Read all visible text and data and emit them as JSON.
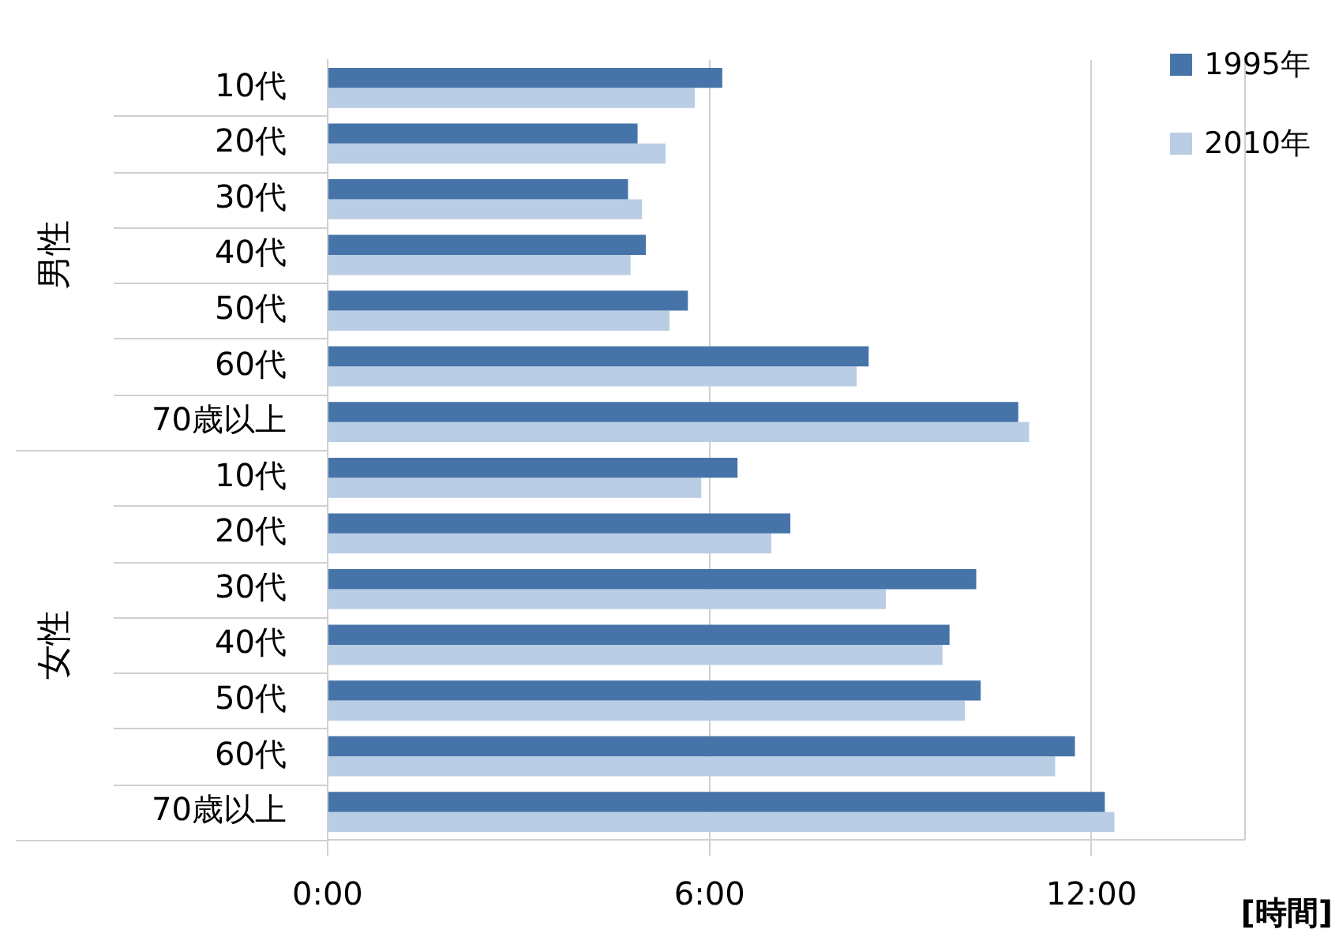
{
  "chart_data": {
    "type": "bar",
    "orientation": "horizontal",
    "xlabel": "[時間]",
    "categories": [
      "10代",
      "20代",
      "30代",
      "40代",
      "50代",
      "60代",
      "70歳以上",
      "10代",
      "20代",
      "30代",
      "40代",
      "50代",
      "60代",
      "70歳以上"
    ],
    "series": [
      {
        "name": "1995年",
        "color": "#4674a9",
        "values": [
          6.2,
          4.87,
          4.72,
          5.0,
          5.66,
          8.5,
          10.85,
          6.44,
          7.27,
          10.19,
          9.77,
          10.26,
          11.74,
          12.21
        ]
      },
      {
        "name": "2010年",
        "color": "#b9cde5",
        "values": [
          5.77,
          5.31,
          4.94,
          4.76,
          5.37,
          8.31,
          11.02,
          5.87,
          6.97,
          8.77,
          9.66,
          10.01,
          11.43,
          12.36
        ]
      }
    ],
    "annotations": [
      "男性",
      "女性"
    ],
    "xlim": [
      0,
      14.4
    ],
    "xticks": [
      {
        "value": 0,
        "label": "0:00"
      },
      {
        "value": 6,
        "label": "6:00"
      },
      {
        "value": 12,
        "label": "12:00"
      }
    ],
    "grid": "x",
    "legend": "top right"
  }
}
